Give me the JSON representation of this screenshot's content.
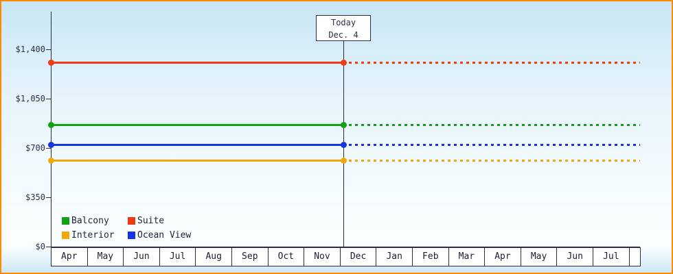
{
  "chart_data": {
    "type": "line",
    "title": "",
    "description": "Cabin price history with forecast after today marker",
    "x_axis": {
      "months": [
        "Apr",
        "May",
        "Jun",
        "Jul",
        "Aug",
        "Sep",
        "Oct",
        "Nov",
        "Dec",
        "Jan",
        "Feb",
        "Mar",
        "Apr",
        "May",
        "Jun",
        "Jul"
      ]
    },
    "y_axis": {
      "ticks": [
        0,
        350,
        700,
        1050,
        1400
      ],
      "tick_labels": [
        "$0",
        "$350",
        "$700",
        "$1,050",
        "$1,400"
      ],
      "range": [
        0,
        1670
      ]
    },
    "grid": false,
    "today": {
      "line1": "Today",
      "line2": "Dec. 4",
      "month_index": 8,
      "month_fraction": 0.1
    },
    "series": [
      {
        "name": "Suite",
        "color": "#ee3b14",
        "value": 1305,
        "style_before_today": "solid",
        "style_after_today": "dotted"
      },
      {
        "name": "Balcony",
        "color": "#13a113",
        "value": 865,
        "style_before_today": "solid",
        "style_after_today": "dotted"
      },
      {
        "name": "Ocean View",
        "color": "#1535e2",
        "value": 720,
        "style_before_today": "solid",
        "style_after_today": "dotted"
      },
      {
        "name": "Interior",
        "color": "#f2a70c",
        "value": 610,
        "style_before_today": "solid",
        "style_after_today": "dotted"
      }
    ],
    "legend": {
      "position": "bottom-left",
      "items": [
        {
          "label": "Balcony",
          "color": "#13a113"
        },
        {
          "label": "Suite",
          "color": "#ee3b14"
        },
        {
          "label": "Interior",
          "color": "#f2a70c"
        },
        {
          "label": "Ocean View",
          "color": "#1535e2"
        }
      ]
    }
  },
  "colors": {
    "frame_border": "#ff8a00",
    "axis": "#2a2a40",
    "background_top": "#c7e6f5",
    "background_bottom": "#cde8f7",
    "cell_background": "#ffffff"
  }
}
